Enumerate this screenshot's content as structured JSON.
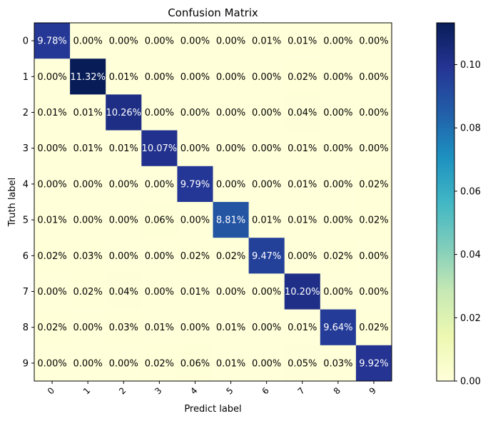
{
  "chart_data": {
    "type": "heatmap",
    "title": "Confusion Matrix",
    "xlabel": "Predict label",
    "ylabel": "Truth label",
    "x_categories": [
      "0",
      "1",
      "2",
      "3",
      "4",
      "5",
      "6",
      "7",
      "8",
      "9"
    ],
    "y_categories": [
      "0",
      "1",
      "2",
      "3",
      "4",
      "5",
      "6",
      "7",
      "8",
      "9"
    ],
    "values": [
      [
        9.78,
        0.0,
        0.0,
        0.0,
        0.0,
        0.0,
        0.01,
        0.01,
        0.0,
        0.0
      ],
      [
        0.0,
        11.32,
        0.01,
        0.0,
        0.0,
        0.0,
        0.0,
        0.02,
        0.0,
        0.0
      ],
      [
        0.01,
        0.01,
        10.26,
        0.0,
        0.0,
        0.0,
        0.0,
        0.04,
        0.0,
        0.0
      ],
      [
        0.0,
        0.01,
        0.01,
        10.07,
        0.0,
        0.0,
        0.0,
        0.01,
        0.0,
        0.0
      ],
      [
        0.0,
        0.0,
        0.0,
        0.0,
        9.79,
        0.0,
        0.0,
        0.01,
        0.0,
        0.02
      ],
      [
        0.01,
        0.0,
        0.0,
        0.06,
        0.0,
        8.81,
        0.01,
        0.01,
        0.0,
        0.02
      ],
      [
        0.02,
        0.03,
        0.0,
        0.0,
        0.02,
        0.02,
        9.47,
        0.0,
        0.02,
        0.0
      ],
      [
        0.0,
        0.02,
        0.04,
        0.0,
        0.01,
        0.0,
        0.0,
        10.2,
        0.0,
        0.0
      ],
      [
        0.02,
        0.0,
        0.03,
        0.01,
        0.0,
        0.01,
        0.0,
        0.01,
        9.64,
        0.02
      ],
      [
        0.0,
        0.0,
        0.0,
        0.02,
        0.06,
        0.01,
        0.0,
        0.05,
        0.03,
        9.92
      ]
    ],
    "cell_label_suffix": "%",
    "colormap": "YlGnBu",
    "colorbar": {
      "range": [
        0,
        0.1132
      ],
      "ticks": [
        "0.00",
        "0.02",
        "0.04",
        "0.06",
        "0.08",
        "0.10"
      ]
    },
    "grid": false
  }
}
